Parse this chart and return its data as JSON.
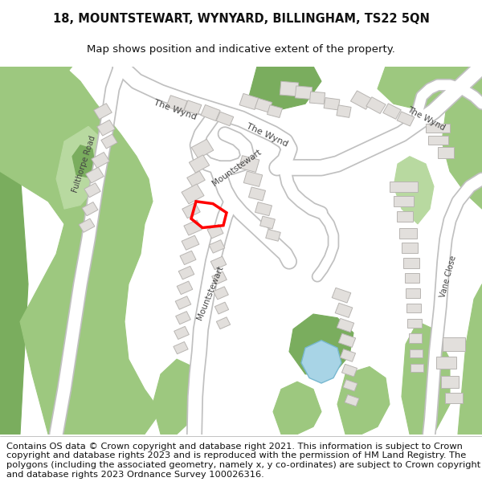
{
  "title_line1": "18, MOUNTSTEWART, WYNYARD, BILLINGHAM, TS22 5QN",
  "title_line2": "Map shows position and indicative extent of the property.",
  "footer_text": "Contains OS data © Crown copyright and database right 2021. This information is subject to Crown copyright and database rights 2023 and is reproduced with the permission of HM Land Registry. The polygons (including the associated geometry, namely x, y co-ordinates) are subject to Crown copyright and database rights 2023 Ordnance Survey 100026316.",
  "bg_color": "#ffffff",
  "map_bg": "#f2f0ed",
  "road_color": "#ffffff",
  "road_stroke": "#c8c8c8",
  "green_dark": "#7aad5e",
  "green_mid": "#9dc87f",
  "green_light": "#b8d9a0",
  "blue_color": "#a8d4e6",
  "building_color": "#e2dfdc",
  "building_stroke": "#b8b5b2",
  "highlight_color": "#ff0000",
  "title_fontsize": 10.5,
  "subtitle_fontsize": 9.5,
  "footer_fontsize": 8.2
}
